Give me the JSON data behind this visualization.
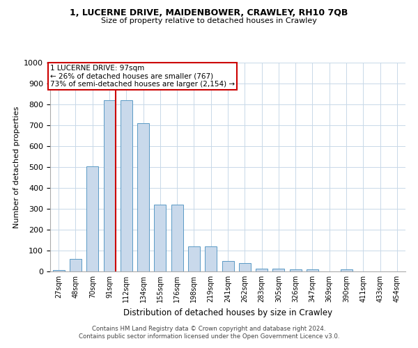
{
  "title1": "1, LUCERNE DRIVE, MAIDENBOWER, CRAWLEY, RH10 7QB",
  "title2": "Size of property relative to detached houses in Crawley",
  "xlabel": "Distribution of detached houses by size in Crawley",
  "ylabel": "Number of detached properties",
  "categories": [
    "27sqm",
    "48sqm",
    "70sqm",
    "91sqm",
    "112sqm",
    "134sqm",
    "155sqm",
    "176sqm",
    "198sqm",
    "219sqm",
    "241sqm",
    "262sqm",
    "283sqm",
    "305sqm",
    "326sqm",
    "347sqm",
    "369sqm",
    "390sqm",
    "411sqm",
    "433sqm",
    "454sqm"
  ],
  "values": [
    8,
    60,
    505,
    820,
    820,
    710,
    320,
    320,
    120,
    120,
    50,
    40,
    15,
    15,
    10,
    10,
    0,
    10,
    0,
    0,
    0
  ],
  "bar_color": "#c9d9eb",
  "bar_edge_color": "#5a9ac5",
  "grid_color": "#c8d8e8",
  "annotation_text": "1 LUCERNE DRIVE: 97sqm\n← 26% of detached houses are smaller (767)\n73% of semi-detached houses are larger (2,154) →",
  "vline_color": "#cc0000",
  "footer1": "Contains HM Land Registry data © Crown copyright and database right 2024.",
  "footer2": "Contains public sector information licensed under the Open Government Licence v3.0.",
  "ylim": [
    0,
    1000
  ],
  "yticks": [
    0,
    100,
    200,
    300,
    400,
    500,
    600,
    700,
    800,
    900,
    1000
  ]
}
